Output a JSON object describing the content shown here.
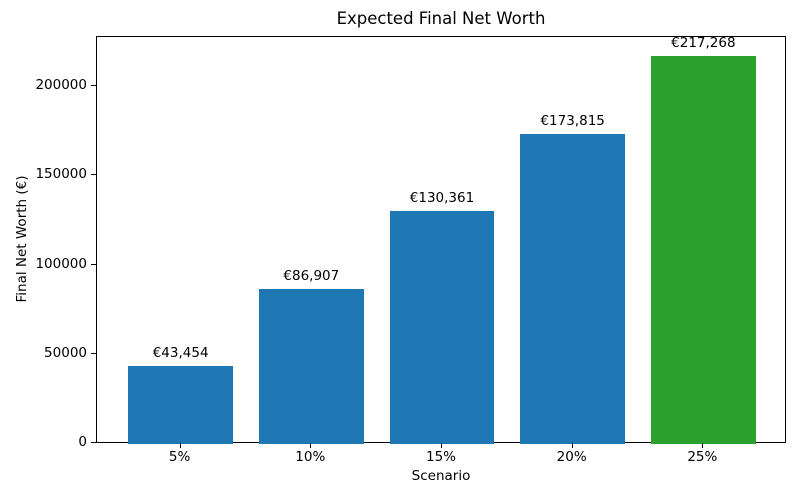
{
  "chart_data": {
    "type": "bar",
    "title": "Expected Final Net Worth",
    "xlabel": "Scenario",
    "ylabel": "Final Net Worth (€)",
    "categories": [
      "5%",
      "10%",
      "15%",
      "20%",
      "25%"
    ],
    "values": [
      43454,
      86907,
      130361,
      173815,
      217268
    ],
    "bar_labels": [
      "€43,454",
      "€86,907",
      "€130,361",
      "€173,815",
      "€217,268"
    ],
    "bar_colors": [
      "#1f77b4",
      "#1f77b4",
      "#1f77b4",
      "#1f77b4",
      "#2ca02c"
    ],
    "yticks": [
      0,
      50000,
      100000,
      150000,
      200000
    ],
    "ytick_labels": [
      "0",
      "50000",
      "100000",
      "150000",
      "200000"
    ],
    "ylim": [
      0,
      228131
    ],
    "xlim": [
      -0.64,
      4.64
    ],
    "bar_width": 0.8,
    "grid": false,
    "legend": null,
    "spine_color": "#000000",
    "background_color": "#ffffff"
  }
}
